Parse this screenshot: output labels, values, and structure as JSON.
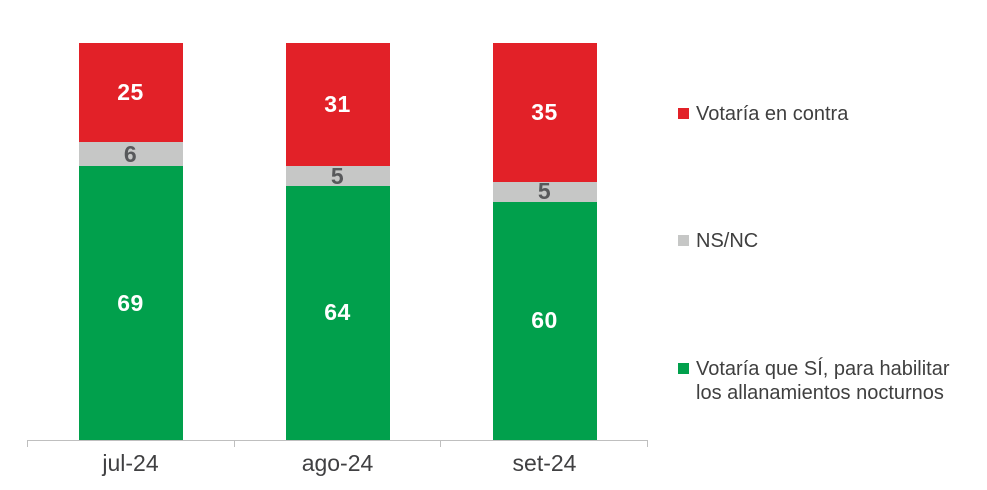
{
  "colors": {
    "red": "#e22128",
    "gray": "#c6c7c6",
    "green": "#01a04c",
    "axis_line": "#bfbfbf",
    "axis_label_text": "#404042",
    "gray_segment_label_text": "#58595b",
    "legend_text": "#3f3f3f",
    "bar_label_on_color": "#ffffff"
  },
  "chart_data": {
    "type": "bar",
    "stacked": true,
    "percent_stacked": true,
    "title": "",
    "xlabel": "",
    "ylabel": "",
    "ylim": [
      0,
      100
    ],
    "grid": false,
    "legend_position": "right",
    "categories": [
      "jul-24",
      "ago-24",
      "set-24"
    ],
    "series": [
      {
        "name": "Votaría que SÍ, para habilitar los allanamientos nocturnos",
        "color_key": "green",
        "label_color": "#ffffff",
        "values": [
          69,
          64,
          60
        ]
      },
      {
        "name": "NS/NC",
        "color_key": "gray",
        "label_color": "#58595b",
        "values": [
          6,
          5,
          5
        ]
      },
      {
        "name": "Votaría en contra",
        "color_key": "red",
        "label_color": "#ffffff",
        "values": [
          25,
          31,
          35
        ]
      }
    ]
  },
  "legend": {
    "items": [
      {
        "label": "Votaría en contra",
        "color_key": "red"
      },
      {
        "label": "NS/NC",
        "color_key": "gray"
      },
      {
        "label": "Votaría que SÍ, para habilitar\nlos allanamientos nocturnos",
        "color_key": "green"
      }
    ]
  }
}
